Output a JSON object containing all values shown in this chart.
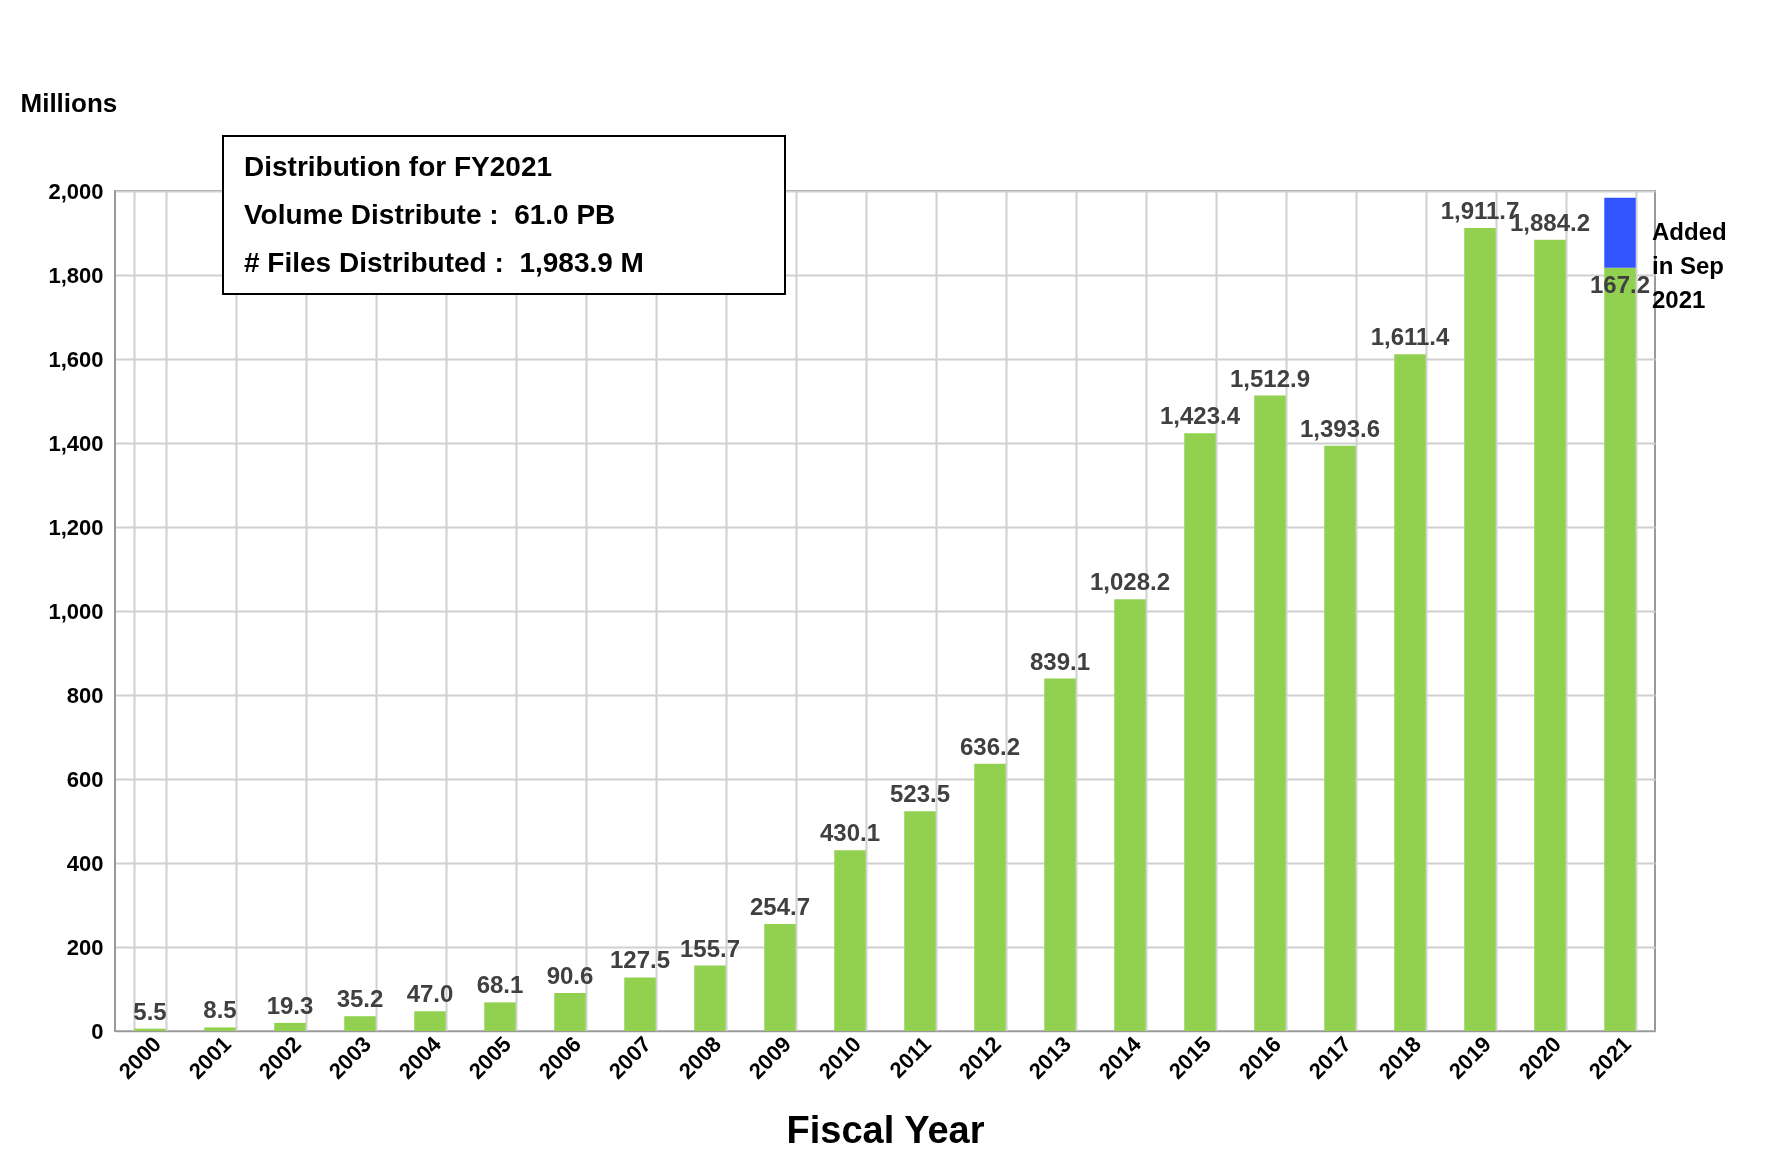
{
  "chart_data": {
    "type": "bar",
    "stacked": true,
    "ylabel": "Millions",
    "xlabel": "Fiscal Year",
    "categories": [
      "2000",
      "2001",
      "2002",
      "2003",
      "2004",
      "2005",
      "2006",
      "2007",
      "2008",
      "2009",
      "2010",
      "2011",
      "2012",
      "2013",
      "2014",
      "2015",
      "2016",
      "2017",
      "2018",
      "2019",
      "2020",
      "2021"
    ],
    "series": [
      {
        "color": "#92d050",
        "values": [
          5.5,
          8.5,
          19.3,
          35.2,
          47.0,
          68.1,
          90.6,
          127.5,
          155.7,
          254.7,
          430.1,
          523.5,
          636.2,
          839.1,
          1028.2,
          1423.4,
          1512.9,
          1393.6,
          1611.4,
          1911.7,
          1884.2,
          1817
        ],
        "value_labels": [
          "5.5",
          "8.5",
          "19.3",
          "35.2",
          "47.0",
          "68.1",
          "90.6",
          "127.5",
          "155.7",
          "254.7",
          "430.1",
          "523.5",
          "636.2",
          "839.1",
          "1,028.2",
          "1,423.4",
          "1,512.9",
          "1,393.6",
          "1,611.4",
          "1,911.7",
          "1,884.2",
          null
        ]
      },
      {
        "color": "#3355ff",
        "values": [
          null,
          null,
          null,
          null,
          null,
          null,
          null,
          null,
          null,
          null,
          null,
          null,
          null,
          null,
          null,
          null,
          null,
          null,
          null,
          null,
          null,
          167.2
        ],
        "value_labels": [
          null,
          null,
          null,
          null,
          null,
          null,
          null,
          null,
          null,
          null,
          null,
          null,
          null,
          null,
          null,
          null,
          null,
          null,
          null,
          null,
          null,
          "167.2"
        ]
      }
    ],
    "ylim": [
      0,
      2000
    ],
    "yticks": [
      0,
      {
        "value": 200,
        "label": "200"
      },
      {
        "value": 400,
        "label": "400"
      },
      {
        "value": 600,
        "label": "600"
      },
      {
        "value": 800,
        "label": "800"
      },
      {
        "value": 1000,
        "label": "1,000"
      },
      {
        "value": 1200,
        "label": "1,200"
      },
      {
        "value": 1400,
        "label": "1,400"
      },
      {
        "value": 1600,
        "label": "1,600"
      },
      {
        "value": 1800,
        "label": "1,800"
      },
      {
        "value": 2000,
        "label": "2,000"
      }
    ],
    "grid": true,
    "annotations": [
      "Distribution for FY2021",
      "Volume Distribute :  61.0 PB",
      "# Files Distributed :  1,983.9 M",
      {
        "text": "Added in Sep 2021",
        "x": "2021",
        "y": 1900
      }
    ]
  }
}
